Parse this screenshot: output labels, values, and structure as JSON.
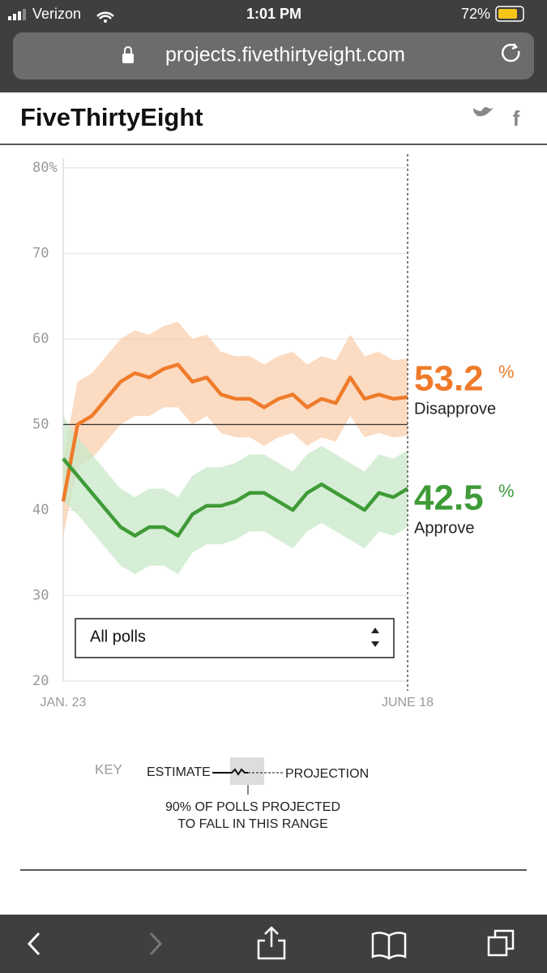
{
  "status_bar": {
    "carrier": "Verizon",
    "time": "1:01 PM",
    "battery": "72%"
  },
  "browser": {
    "url": "projects.fivethirtyeight.com"
  },
  "header": {
    "site_title": "FiveThirtyEight"
  },
  "chart_data": {
    "type": "line",
    "unit": "%",
    "x": [
      "JAN. 23",
      null,
      null,
      null,
      null,
      null,
      null,
      null,
      null,
      null,
      null,
      null,
      null,
      null,
      null,
      null,
      null,
      null,
      null,
      null,
      null,
      null,
      null,
      null,
      "JUNE 18"
    ],
    "ylim": [
      20,
      80
    ],
    "yticks": [
      20,
      30,
      40,
      50,
      60,
      70,
      {
        "value": 80,
        "label": "80%"
      }
    ],
    "reference_line": 50,
    "series": [
      {
        "name": "Disapprove",
        "color": "#ef7b2a",
        "band_color": "#f9cfae",
        "values": [
          41,
          50,
          51,
          53,
          55,
          56,
          55.5,
          56.5,
          57,
          55,
          55.5,
          53.5,
          53,
          53,
          52,
          53,
          53.5,
          52,
          53,
          52.5,
          55.5,
          53,
          53.5,
          53,
          53.2
        ],
        "low": [
          37,
          45,
          46,
          48,
          50,
          51,
          51,
          52,
          52,
          50,
          51,
          49,
          48.5,
          48.5,
          47.5,
          48.5,
          49,
          47.5,
          48.5,
          48,
          51,
          48.5,
          49,
          48.5,
          48.7
        ],
        "high": [
          46,
          55,
          56,
          58,
          60,
          61,
          60.5,
          61.5,
          62,
          60,
          60.5,
          58.5,
          58,
          58,
          57,
          58,
          58.5,
          57,
          58,
          57.5,
          60.5,
          58,
          58.5,
          57.5,
          57.7
        ]
      },
      {
        "name": "Approve",
        "color": "#3f9b37",
        "band_color": "#c8e8c8",
        "values": [
          46,
          44,
          42,
          40,
          38,
          37,
          38,
          38,
          37,
          39.5,
          40.5,
          40.5,
          41,
          42,
          42,
          41,
          40,
          42,
          43,
          42,
          41,
          40,
          42,
          41.5,
          42.5
        ],
        "low": [
          41,
          39.5,
          37.5,
          35.5,
          33.5,
          32.5,
          33.5,
          33.5,
          32.5,
          35,
          36,
          36,
          36.5,
          37.5,
          37.5,
          36.5,
          35.5,
          37.5,
          38.5,
          37.5,
          36.5,
          35.5,
          37.5,
          37,
          38
        ],
        "high": [
          51,
          48.5,
          46.5,
          44.5,
          42.5,
          41.5,
          42.5,
          42.5,
          41.5,
          44,
          45,
          45,
          45.5,
          46.5,
          46.5,
          45.5,
          44.5,
          46.5,
          47.5,
          46.5,
          45.5,
          44.5,
          46.5,
          46,
          47
        ]
      }
    ]
  },
  "filter": {
    "selected": "All polls"
  },
  "key": {
    "label": "KEY",
    "estimate": "ESTIMATE",
    "projection": "PROJECTION",
    "note_line1": "90% OF POLLS PROJECTED",
    "note_line2": "TO FALL IN THIS RANGE"
  }
}
